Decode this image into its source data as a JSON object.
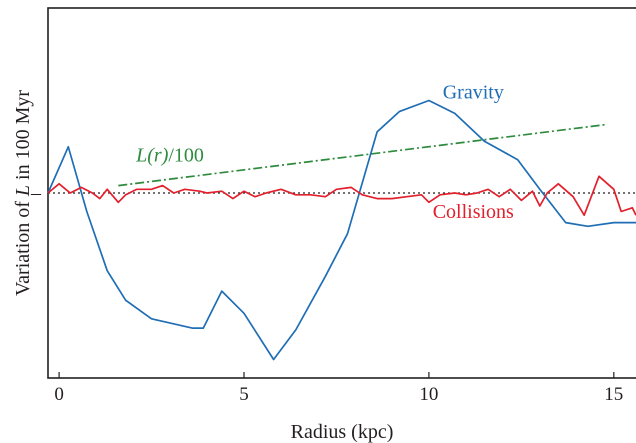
{
  "chart_data": {
    "type": "line",
    "xlabel": "Radius (kpc)",
    "ylabel": {
      "before": "Variation of ",
      "italic": "L",
      "after": " in 100 Myr"
    },
    "xlim": [
      -0.3,
      15.6
    ],
    "ylim": [
      -1.0,
      1.0
    ],
    "x_ticks": [
      0,
      5,
      10,
      15
    ],
    "x_tick_labels": [
      "0",
      "5",
      "10",
      "15"
    ],
    "y_zero_tick_label": "–",
    "zero_line": {
      "y": 0,
      "style": "dotted",
      "color": "#231f20"
    },
    "series": [
      {
        "name": "Gravity",
        "color": "#1f6eb5",
        "style": "solid",
        "label_position": {
          "x": 11.2,
          "y": 0.51
        },
        "points": [
          [
            -0.3,
            0.0
          ],
          [
            0.25,
            0.25
          ],
          [
            0.75,
            -0.1
          ],
          [
            1.3,
            -0.42
          ],
          [
            1.8,
            -0.58
          ],
          [
            2.5,
            -0.68
          ],
          [
            3.6,
            -0.73
          ],
          [
            3.9,
            -0.73
          ],
          [
            4.4,
            -0.53
          ],
          [
            5.0,
            -0.65
          ],
          [
            5.8,
            -0.9
          ],
          [
            6.4,
            -0.74
          ],
          [
            7.2,
            -0.45
          ],
          [
            7.8,
            -0.22
          ],
          [
            8.6,
            0.33
          ],
          [
            9.2,
            0.44
          ],
          [
            10.0,
            0.5
          ],
          [
            10.7,
            0.43
          ],
          [
            11.5,
            0.28
          ],
          [
            12.4,
            0.18
          ],
          [
            13.0,
            0.02
          ],
          [
            13.7,
            -0.16
          ],
          [
            14.3,
            -0.18
          ],
          [
            15.0,
            -0.16
          ],
          [
            15.6,
            -0.16
          ]
        ]
      },
      {
        "name": "Collisions",
        "color": "#e2202c",
        "style": "solid",
        "label_position": {
          "x": 11.2,
          "y": -0.135
        },
        "points": [
          [
            -0.3,
            0.0
          ],
          [
            0.0,
            0.05
          ],
          [
            0.3,
            0.0
          ],
          [
            0.6,
            0.03
          ],
          [
            0.9,
            0.0
          ],
          [
            1.1,
            -0.03
          ],
          [
            1.3,
            0.02
          ],
          [
            1.6,
            -0.05
          ],
          [
            1.8,
            -0.01
          ],
          [
            2.1,
            0.02
          ],
          [
            2.5,
            0.02
          ],
          [
            2.8,
            0.04
          ],
          [
            3.1,
            0.0
          ],
          [
            3.4,
            0.02
          ],
          [
            3.8,
            0.01
          ],
          [
            4.0,
            0.0
          ],
          [
            4.4,
            0.01
          ],
          [
            4.7,
            -0.03
          ],
          [
            5.0,
            0.01
          ],
          [
            5.3,
            -0.02
          ],
          [
            5.6,
            0.0
          ],
          [
            6.0,
            0.02
          ],
          [
            6.4,
            -0.01
          ],
          [
            6.8,
            -0.01
          ],
          [
            7.2,
            -0.02
          ],
          [
            7.5,
            0.02
          ],
          [
            7.9,
            0.03
          ],
          [
            8.2,
            -0.01
          ],
          [
            8.6,
            -0.03
          ],
          [
            9.0,
            -0.03
          ],
          [
            9.4,
            -0.02
          ],
          [
            9.8,
            -0.01
          ],
          [
            10.0,
            -0.05
          ],
          [
            10.3,
            -0.01
          ],
          [
            10.7,
            0.0
          ],
          [
            11.0,
            -0.01
          ],
          [
            11.3,
            0.0
          ],
          [
            11.6,
            0.02
          ],
          [
            11.9,
            -0.02
          ],
          [
            12.2,
            0.02
          ],
          [
            12.5,
            -0.04
          ],
          [
            12.8,
            0.01
          ],
          [
            13.0,
            -0.07
          ],
          [
            13.2,
            0.0
          ],
          [
            13.5,
            0.05
          ],
          [
            13.9,
            -0.02
          ],
          [
            14.2,
            -0.12
          ],
          [
            14.6,
            0.09
          ],
          [
            15.0,
            0.02
          ],
          [
            15.2,
            -0.1
          ],
          [
            15.5,
            -0.08
          ],
          [
            15.6,
            -0.12
          ]
        ]
      },
      {
        "name": "L(r)/100",
        "color": "#2e8b3d",
        "style": "dashdot",
        "label_position": {
          "x": 3.0,
          "y": 0.17
        },
        "points": [
          [
            1.6,
            0.04
          ],
          [
            14.8,
            0.37
          ]
        ]
      }
    ],
    "annotations": [
      {
        "series": "Gravity",
        "text": "Gravity",
        "color": "#1f6eb5"
      },
      {
        "series": "Collisions",
        "text": "Collisions",
        "color": "#e2202c"
      },
      {
        "series": "L(r)/100",
        "italic": "L(r)",
        "text": "/100",
        "color": "#2e8b3d"
      }
    ],
    "grid": false,
    "legend": "none"
  }
}
